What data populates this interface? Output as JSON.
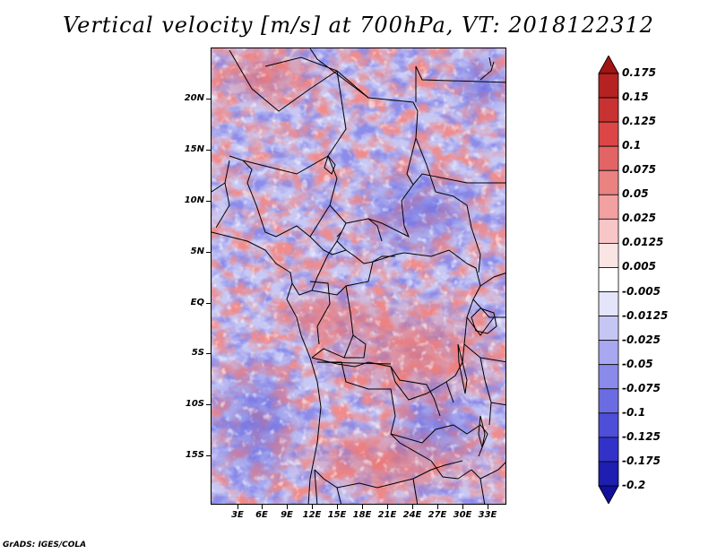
{
  "title": "Vertical velocity [m/s] at 700hPa, VT: 2018122312",
  "credit": "GrADS: IGES/COLA",
  "map": {
    "lat_labels": [
      "20N",
      "15N",
      "10N",
      "5N",
      "EQ",
      "5S",
      "10S",
      "15S"
    ],
    "lon_labels": [
      "3E",
      "6E",
      "9E",
      "12E",
      "15E",
      "18E",
      "21E",
      "24E",
      "27E",
      "30E",
      "33E"
    ]
  },
  "colorbar": {
    "levels": [
      "0.175",
      "0.15",
      "0.125",
      "0.1",
      "0.075",
      "0.05",
      "0.025",
      "0.0125",
      "0.005",
      "-0.005",
      "-0.0125",
      "-0.025",
      "-0.05",
      "-0.075",
      "-0.1",
      "-0.125",
      "-0.175",
      "-0.2"
    ],
    "colors": [
      "#a01414",
      "#b42222",
      "#c83232",
      "#dc4646",
      "#e26464",
      "#ea8282",
      "#f2a0a0",
      "#f8c6c6",
      "#fbe4e4",
      "#ffffff",
      "#e4e4fb",
      "#c6c6f5",
      "#a8a8f0",
      "#8a8aea",
      "#6c6ce2",
      "#4e4ed8",
      "#3232c8",
      "#1e1eb0",
      "#10109a"
    ]
  }
}
